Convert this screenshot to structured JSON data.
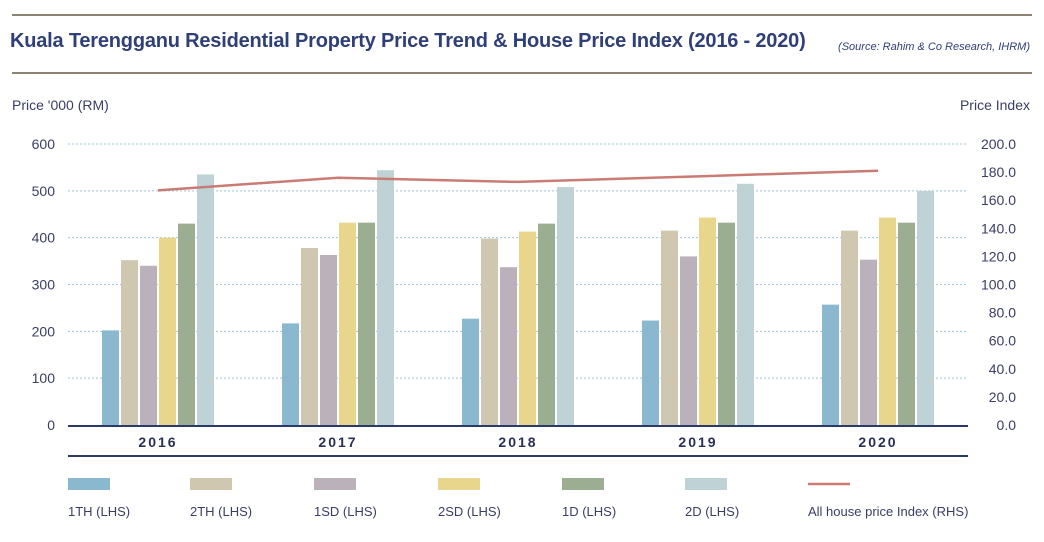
{
  "header": {
    "title": "Kuala Terengganu Residential Property Price Trend & House Price Index (2016 - 2020)",
    "source": "(Source: Rahim & Co Research, IHRM)"
  },
  "colors": {
    "1TH": "#8ab9cf",
    "2TH": "#d0c7b0",
    "1SD": "#bbb1bb",
    "2SD": "#e8d68c",
    "1D": "#9bae92",
    "2D": "#bfd2d6",
    "index_line": "#c97b74",
    "axis": "#2b3a6b",
    "grid": "#9ec4dc"
  },
  "chart_data": {
    "type": "bar",
    "ylabel": "Price '000 (RM)",
    "y2label": "Price Index",
    "ylim": [
      0,
      600
    ],
    "y2lim": [
      0,
      200
    ],
    "yticks": [
      "0",
      "100",
      "200",
      "300",
      "400",
      "500",
      "600"
    ],
    "y2ticks": [
      "0.0",
      "20.0",
      "40.0",
      "60.0",
      "80.0",
      "100.0",
      "120.0",
      "140.0",
      "160.0",
      "180.0",
      "200.0"
    ],
    "grid": true,
    "legend_position": "bottom",
    "categories": [
      "2016",
      "2017",
      "2018",
      "2019",
      "2020"
    ],
    "series": [
      {
        "name": "1TH (LHS)",
        "key": "1TH",
        "values": [
          202,
          217,
          227,
          223,
          257
        ]
      },
      {
        "name": "2TH (LHS)",
        "key": "2TH",
        "values": [
          352,
          378,
          398,
          415,
          415
        ]
      },
      {
        "name": "1SD (LHS)",
        "key": "1SD",
        "values": [
          340,
          363,
          337,
          360,
          353
        ]
      },
      {
        "name": "2SD (LHS)",
        "key": "2SD",
        "values": [
          400,
          432,
          413,
          443,
          443
        ]
      },
      {
        "name": "1D (LHS)",
        "key": "1D",
        "values": [
          430,
          432,
          430,
          432,
          432
        ]
      },
      {
        "name": "2D (LHS)",
        "key": "2D",
        "values": [
          535,
          544,
          508,
          515,
          500
        ]
      }
    ],
    "line_series": {
      "name": "All house price Index (RHS)",
      "key": "index_line",
      "values": [
        167,
        176,
        173,
        177,
        181
      ]
    }
  }
}
